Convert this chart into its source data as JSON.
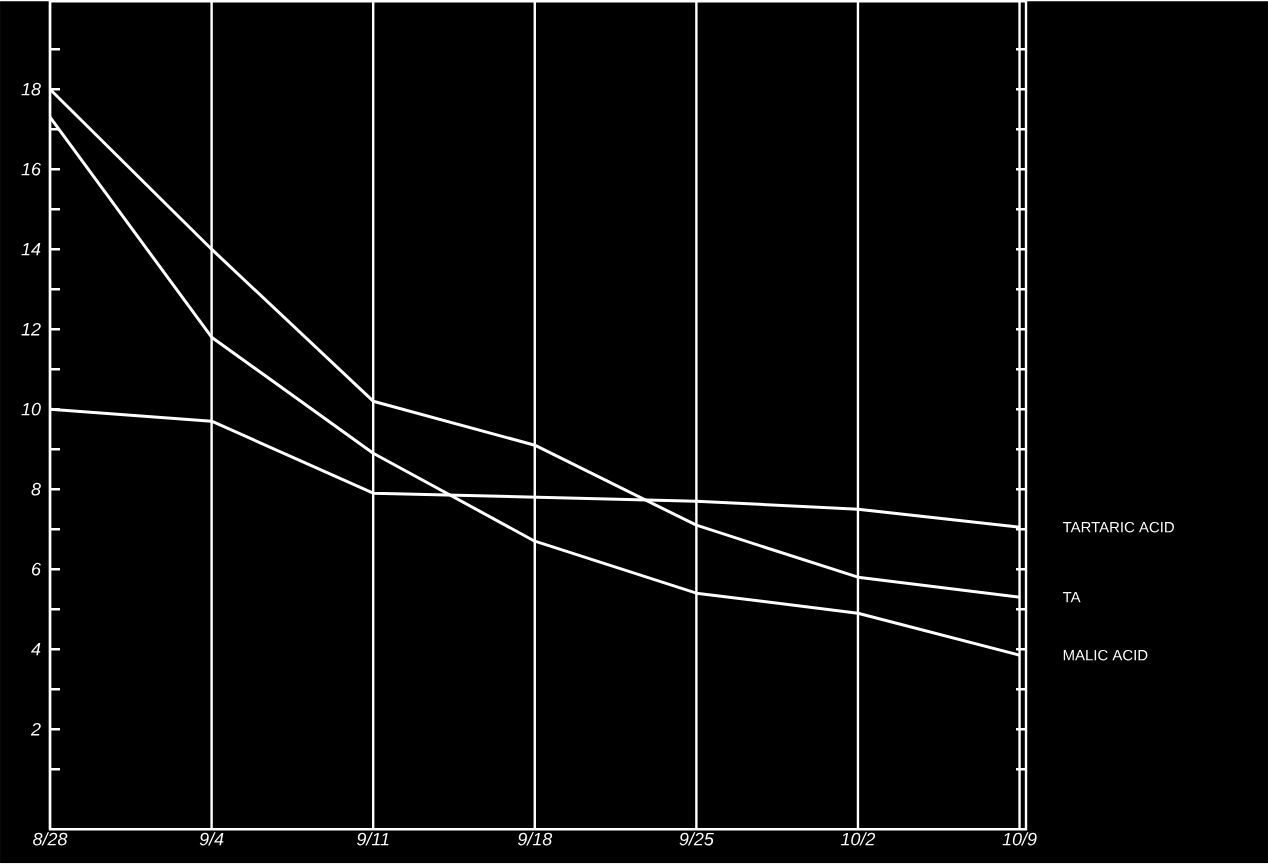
{
  "chart_data": {
    "type": "line",
    "categories": [
      "8/28",
      "9/4",
      "9/11",
      "9/18",
      "9/25",
      "10/2",
      "10/9"
    ],
    "series": [
      {
        "name": "TARTARIC ACID",
        "color": "#ffffff",
        "values": [
          10.0,
          9.7,
          7.9,
          7.8,
          7.7,
          7.5,
          7.05
        ]
      },
      {
        "name": "TA",
        "color": "#ffffff",
        "values": [
          18.0,
          14.0,
          10.2,
          9.1,
          7.1,
          5.8,
          5.3
        ]
      },
      {
        "name": "MALIC ACID",
        "color": "#ffffff",
        "values": [
          17.3,
          11.8,
          8.9,
          6.7,
          5.4,
          4.9,
          3.85
        ]
      }
    ],
    "ylim": [
      -0.5,
      20.2
    ],
    "yticks": [
      {
        "value": 1,
        "label": null
      },
      2,
      {
        "value": 3,
        "label": null
      },
      4,
      {
        "value": 5,
        "label": null
      },
      6,
      {
        "value": 7,
        "label": null
      },
      8,
      {
        "value": 9,
        "label": null
      },
      10,
      {
        "value": 11,
        "label": null
      },
      12,
      {
        "value": 13,
        "label": null
      },
      14,
      {
        "value": 15,
        "label": null
      },
      16,
      {
        "value": 17,
        "label": null
      },
      18,
      {
        "value": 19,
        "label": null
      }
    ],
    "grid": "x",
    "legend": false,
    "marker": "none",
    "line_style": "solid"
  }
}
